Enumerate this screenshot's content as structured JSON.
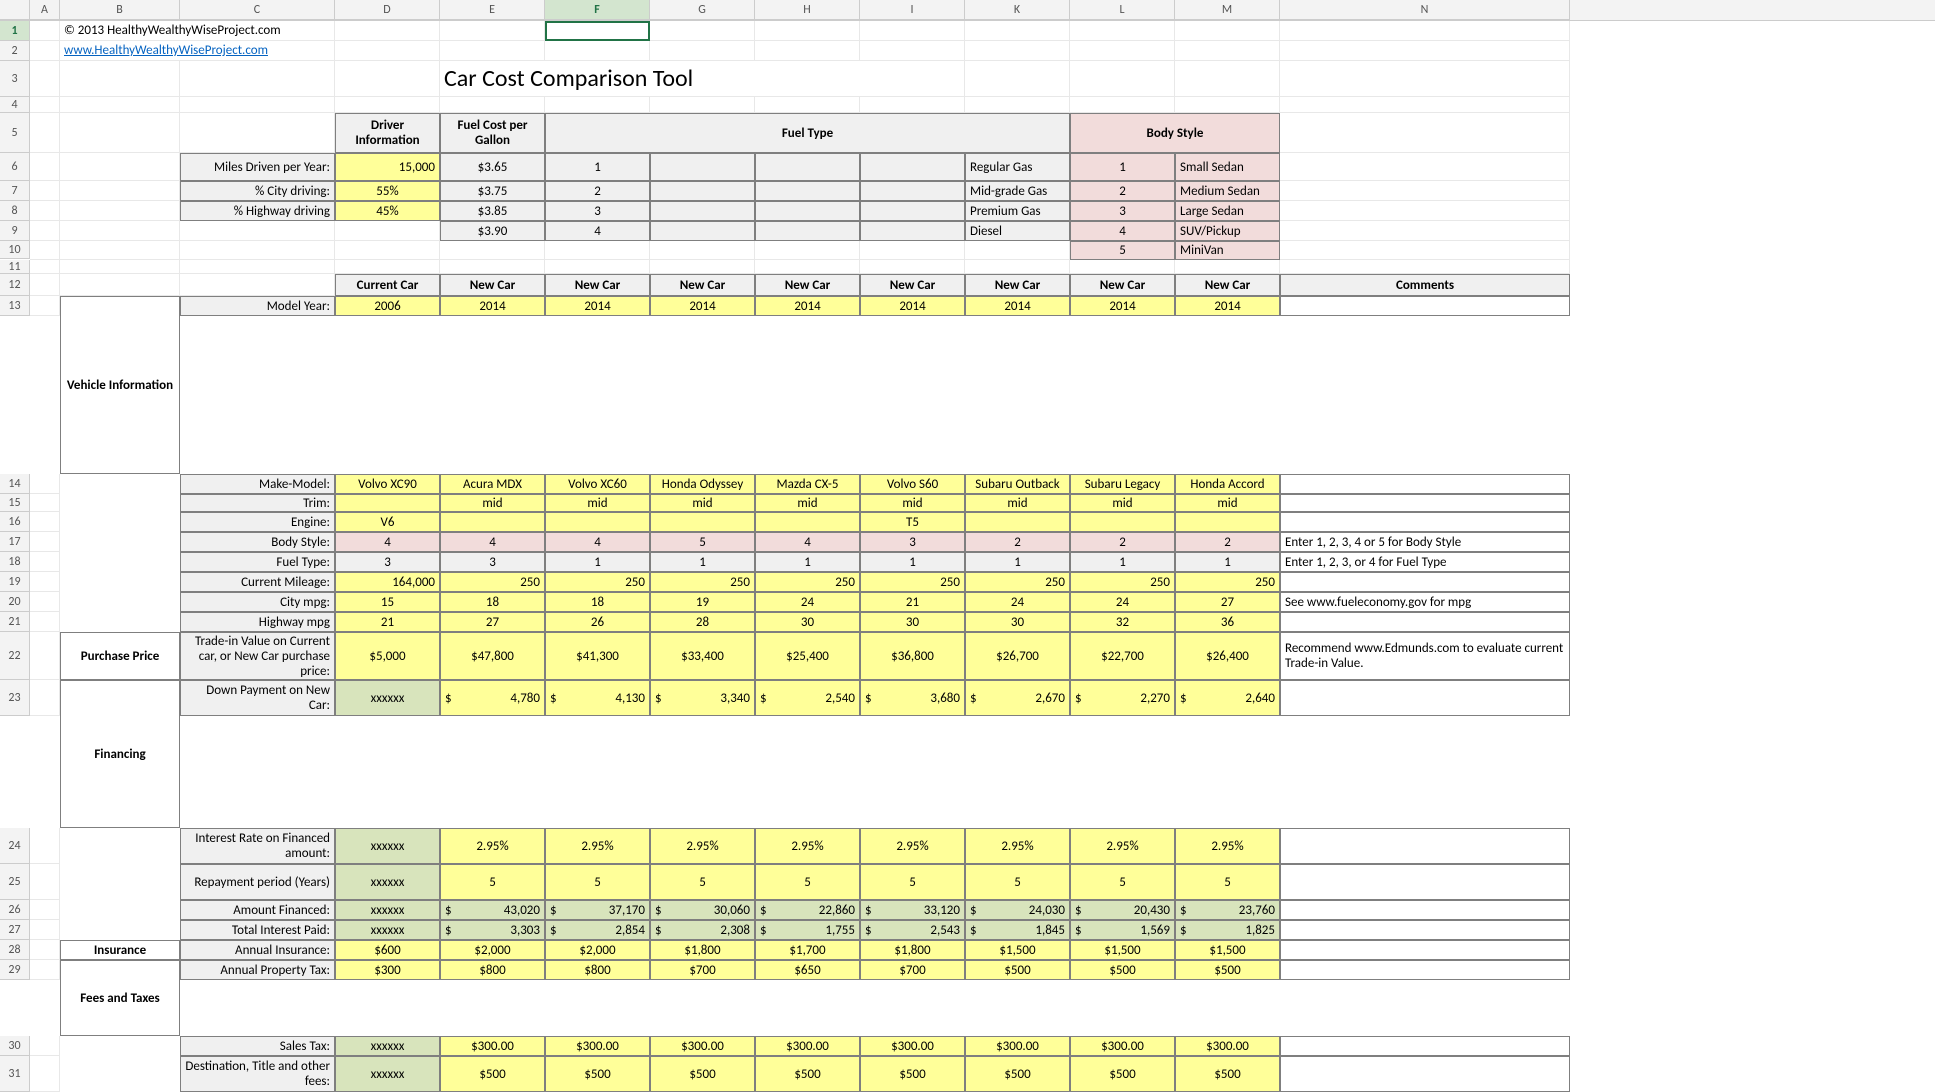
{
  "selectedCell": "F1",
  "copyright": "© 2013 HealthyWealthyWiseProject.com",
  "link": "www.HealthyWealthyWiseProject.com",
  "title": "Car Cost Comparison Tool",
  "columns": [
    "A",
    "B",
    "C",
    "D",
    "E",
    "F",
    "G",
    "H",
    "I",
    "K",
    "L",
    "M",
    "N"
  ],
  "rowNumbers": [
    "1",
    "2",
    "3",
    "4",
    "5",
    "6",
    "7",
    "8",
    "9",
    "10",
    "11",
    "12",
    "13",
    "14",
    "15",
    "16",
    "17",
    "18",
    "19",
    "20",
    "21",
    "22",
    "23",
    "24",
    "25",
    "26",
    "27",
    "28",
    "29",
    "30",
    "31"
  ],
  "headers": {
    "driverInfo": "Driver Information",
    "fuelCost": "Fuel Cost per Gallon",
    "fuelType": "Fuel Type",
    "bodyStyle": "Body Style"
  },
  "driver": {
    "milesLabel": "Miles Driven per Year:",
    "miles": "15,000",
    "cityLabel": "% City driving:",
    "city": "55%",
    "hwyLabel": "% Highway driving",
    "hwy": "45%"
  },
  "fuelCosts": [
    "$3.65",
    "$3.75",
    "$3.85",
    "$3.90"
  ],
  "fuelTypeNums": [
    "1",
    "2",
    "3",
    "4"
  ],
  "fuelTypeNames": [
    "Regular Gas",
    "Mid-grade Gas",
    "Premium Gas",
    "Diesel"
  ],
  "bodyNums": [
    "1",
    "2",
    "3",
    "4",
    "5"
  ],
  "bodyNames": [
    "Small Sedan",
    "Medium Sedan",
    "Large Sedan",
    "SUV/Pickup",
    "MiniVan"
  ],
  "carHeaders": [
    "Current Car",
    "New Car",
    "New Car",
    "New Car",
    "New Car",
    "New Car",
    "New Car",
    "New Car",
    "New Car"
  ],
  "commentsHeader": "Comments",
  "sections": {
    "vehicle": "Vehicle Information",
    "purchase": "Purchase Price",
    "financing": "Financing",
    "insurance": "Insurance",
    "fees": "Fees and Taxes"
  },
  "rowLabels": {
    "modelYear": "Model Year:",
    "makeModel": "Make-Model:",
    "trim": "Trim:",
    "engine": "Engine:",
    "bodyStyle": "Body Style:",
    "fuelType": "Fuel Type:",
    "mileage": "Current Mileage:",
    "cityMpg": "City mpg:",
    "hwyMpg": "Highway mpg",
    "tradeIn": "Trade-in Value on Current car, or New Car purchase price:",
    "downPay": "Down Payment on New Car:",
    "intRate": "Interest Rate on Financed amount:",
    "repay": "Repayment period (Years)",
    "amtFin": "Amount Financed:",
    "totInt": "Total Interest Paid:",
    "annIns": "Annual Insurance:",
    "propTax": "Annual Property Tax:",
    "salesTax": "Sales Tax:",
    "destFee": "Destination, Title and other fees:"
  },
  "data": {
    "modelYear": [
      "2006",
      "2014",
      "2014",
      "2014",
      "2014",
      "2014",
      "2014",
      "2014",
      "2014"
    ],
    "makeModel": [
      "Volvo XC90",
      "Acura MDX",
      "Volvo XC60",
      "Honda Odyssey",
      "Mazda CX-5",
      "Volvo S60",
      "Subaru Outback",
      "Subaru Legacy",
      "Honda Accord"
    ],
    "trim": [
      "",
      "mid",
      "mid",
      "mid",
      "mid",
      "mid",
      "mid",
      "mid",
      "mid"
    ],
    "engine": [
      "V6",
      "",
      "",
      "",
      "",
      "T5",
      "",
      "",
      ""
    ],
    "bodyStyle": [
      "4",
      "4",
      "4",
      "5",
      "4",
      "3",
      "2",
      "2",
      "2"
    ],
    "fuelType": [
      "3",
      "3",
      "1",
      "1",
      "1",
      "1",
      "1",
      "1",
      "1"
    ],
    "mileage": [
      "164,000",
      "250",
      "250",
      "250",
      "250",
      "250",
      "250",
      "250",
      "250"
    ],
    "cityMpg": [
      "15",
      "18",
      "18",
      "19",
      "24",
      "21",
      "24",
      "24",
      "27"
    ],
    "hwyMpg": [
      "21",
      "27",
      "26",
      "28",
      "30",
      "30",
      "30",
      "32",
      "36"
    ],
    "tradeIn": [
      "$5,000",
      "$47,800",
      "$41,300",
      "$33,400",
      "$25,400",
      "$36,800",
      "$26,700",
      "$22,700",
      "$26,400"
    ],
    "downPay": [
      "xxxxxx",
      "4,780",
      "4,130",
      "3,340",
      "2,540",
      "3,680",
      "2,670",
      "2,270",
      "2,640"
    ],
    "intRate": [
      "xxxxxx",
      "2.95%",
      "2.95%",
      "2.95%",
      "2.95%",
      "2.95%",
      "2.95%",
      "2.95%",
      "2.95%"
    ],
    "repay": [
      "xxxxxx",
      "5",
      "5",
      "5",
      "5",
      "5",
      "5",
      "5",
      "5"
    ],
    "amtFin": [
      "xxxxxx",
      "43,020",
      "37,170",
      "30,060",
      "22,860",
      "33,120",
      "24,030",
      "20,430",
      "23,760"
    ],
    "totInt": [
      "xxxxxx",
      "3,303",
      "2,854",
      "2,308",
      "1,755",
      "2,543",
      "1,845",
      "1,569",
      "1,825"
    ],
    "annIns": [
      "$600",
      "$2,000",
      "$2,000",
      "$1,800",
      "$1,700",
      "$1,800",
      "$1,500",
      "$1,500",
      "$1,500"
    ],
    "propTax": [
      "$300",
      "$800",
      "$800",
      "$700",
      "$650",
      "$700",
      "$500",
      "$500",
      "$500"
    ],
    "salesTax": [
      "xxxxxx",
      "$300.00",
      "$300.00",
      "$300.00",
      "$300.00",
      "$300.00",
      "$300.00",
      "$300.00",
      "$300.00"
    ],
    "destFee": [
      "xxxxxx",
      "$500",
      "$500",
      "$500",
      "$500",
      "$500",
      "$500",
      "$500",
      "$500"
    ]
  },
  "comments": {
    "bodyStyle": "Enter 1, 2, 3, 4 or 5 for Body Style",
    "fuelType": "Enter 1, 2, 3, or 4 for Fuel Type",
    "cityMpg": "See www.fueleconomy.gov for mpg",
    "tradeIn": "Recommend www.Edmunds.com to evaluate current Trade-in Value."
  },
  "xxx": "xxxxxx",
  "dollar": "$"
}
